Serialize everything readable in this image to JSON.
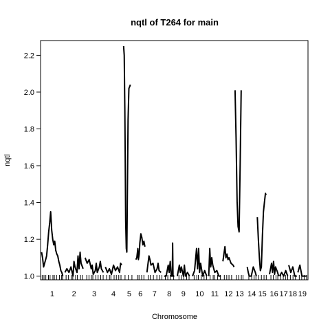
{
  "chart_data": {
    "type": "line",
    "title": "nqtl of T264 for main",
    "xlabel": "Chromosome",
    "ylabel": "nqtl",
    "ylim": [
      0.98,
      2.28
    ],
    "yticks": [
      1.0,
      1.2,
      1.4,
      1.6,
      1.8,
      2.0,
      2.2
    ],
    "ytick_labels": [
      "1.0",
      "1.2",
      "1.4",
      "1.6",
      "1.8",
      "2.0",
      "2.2"
    ],
    "grid": false,
    "legend": "none",
    "line_color": "#000000",
    "chromosomes": [
      {
        "label": "1",
        "start": 0,
        "len": 10.5,
        "pts": [
          [
            0,
            1.13
          ],
          [
            0.5,
            1.1
          ],
          [
            1,
            1.05
          ],
          [
            1.5,
            1.07
          ],
          [
            2,
            1.09
          ],
          [
            2.5,
            1.11
          ],
          [
            3,
            1.17
          ],
          [
            3.5,
            1.24
          ],
          [
            4,
            1.29
          ],
          [
            4.5,
            1.35
          ],
          [
            5,
            1.25
          ],
          [
            5.5,
            1.2
          ],
          [
            6,
            1.17
          ],
          [
            6.5,
            1.19
          ],
          [
            7,
            1.14
          ],
          [
            7.5,
            1.12
          ],
          [
            8,
            1.11
          ],
          [
            8.5,
            1.08
          ],
          [
            9,
            1.06
          ],
          [
            9.5,
            1.03
          ],
          [
            10,
            1.02
          ],
          [
            10.5,
            1.0
          ]
        ]
      },
      {
        "label": "2",
        "start": 11.5,
        "len": 9,
        "pts": [
          [
            0,
            1.02
          ],
          [
            1,
            1.04
          ],
          [
            2,
            1.02
          ],
          [
            3,
            1.05
          ],
          [
            4,
            1.0
          ],
          [
            4.5,
            1.08
          ],
          [
            5,
            1.05
          ],
          [
            6,
            1.02
          ],
          [
            6.5,
            1.11
          ],
          [
            7,
            1.04
          ],
          [
            7.5,
            1.13
          ],
          [
            8,
            1.07
          ],
          [
            9,
            1.04
          ]
        ]
      },
      {
        "label": "3",
        "start": 21.5,
        "len": 9,
        "pts": [
          [
            0,
            1.1
          ],
          [
            1,
            1.07
          ],
          [
            2,
            1.09
          ],
          [
            3,
            1.04
          ],
          [
            3.5,
            1.06
          ],
          [
            4,
            1.01
          ],
          [
            5,
            1.03
          ],
          [
            5.5,
            1.07
          ],
          [
            6,
            1.02
          ],
          [
            7,
            1.05
          ],
          [
            7.5,
            1.08
          ],
          [
            8,
            1.04
          ],
          [
            9,
            1.02
          ]
        ]
      },
      {
        "label": "4",
        "start": 31.5,
        "len": 8,
        "pts": [
          [
            0,
            1.05
          ],
          [
            1,
            1.02
          ],
          [
            2,
            1.04
          ],
          [
            3,
            1.01
          ],
          [
            4,
            1.06
          ],
          [
            5,
            1.03
          ],
          [
            6,
            1.05
          ],
          [
            7,
            1.02
          ],
          [
            7.5,
            1.07
          ],
          [
            8,
            1.06
          ]
        ]
      },
      {
        "label": "5",
        "start": 40.5,
        "len": 5.5,
        "pts": [
          [
            0,
            2.25
          ],
          [
            0.3,
            2.2
          ],
          [
            0.6,
            1.9
          ],
          [
            1,
            1.3
          ],
          [
            1.3,
            1.15
          ],
          [
            1.6,
            1.13
          ],
          [
            1.9,
            1.5
          ],
          [
            2.2,
            1.85
          ],
          [
            2.6,
            2.02
          ],
          [
            3,
            2.03
          ],
          [
            3.3,
            2.04
          ]
        ]
      },
      {
        "label": "6",
        "start": 46.5,
        "len": 4.5,
        "pts": [
          [
            0,
            1.09
          ],
          [
            0.5,
            1.1
          ],
          [
            1,
            1.15
          ],
          [
            1.3,
            1.09
          ],
          [
            1.7,
            1.12
          ],
          [
            2,
            1.18
          ],
          [
            2.5,
            1.23
          ],
          [
            3,
            1.21
          ],
          [
            3.5,
            1.17
          ],
          [
            4,
            1.19
          ],
          [
            4.5,
            1.16
          ]
        ]
      },
      {
        "label": "7",
        "start": 52,
        "len": 7.5,
        "pts": [
          [
            0,
            1.02
          ],
          [
            1,
            1.11
          ],
          [
            1.5,
            1.09
          ],
          [
            2,
            1.06
          ],
          [
            3,
            1.07
          ],
          [
            4,
            1.02
          ],
          [
            5,
            1.04
          ],
          [
            5.5,
            1.07
          ],
          [
            6,
            1.03
          ],
          [
            7,
            1.02
          ]
        ]
      },
      {
        "label": "8",
        "start": 60.5,
        "len": 5,
        "pts": [
          [
            0,
            1.0
          ],
          [
            1,
            1.0
          ],
          [
            2,
            1.06
          ],
          [
            2.5,
            1.02
          ],
          [
            3,
            1.08
          ],
          [
            3.5,
            1.0
          ],
          [
            4,
            1.0
          ],
          [
            4.2,
            1.18
          ],
          [
            4.4,
            1.0
          ],
          [
            5,
            1.0
          ]
        ]
      },
      {
        "label": "9",
        "start": 67,
        "len": 6,
        "pts": [
          [
            0,
            1.0
          ],
          [
            1,
            1.06
          ],
          [
            1.5,
            1.02
          ],
          [
            2,
            1.05
          ],
          [
            3,
            1.0
          ],
          [
            3.5,
            1.06
          ],
          [
            4,
            1.0
          ],
          [
            5,
            1.02
          ],
          [
            6,
            1.0
          ]
        ]
      },
      {
        "label": "10",
        "start": 74.5,
        "len": 7,
        "pts": [
          [
            0,
            1.0
          ],
          [
            1,
            1.03
          ],
          [
            2,
            1.15
          ],
          [
            2.5,
            1.04
          ],
          [
            3,
            1.15
          ],
          [
            3.5,
            1.02
          ],
          [
            4,
            1.07
          ],
          [
            5,
            1.0
          ],
          [
            6,
            1.03
          ],
          [
            7,
            1.0
          ]
        ]
      },
      {
        "label": "11",
        "start": 82.5,
        "len": 6,
        "pts": [
          [
            0,
            1.0
          ],
          [
            0.5,
            1.15
          ],
          [
            1,
            1.05
          ],
          [
            1.5,
            1.1
          ],
          [
            2,
            1.06
          ],
          [
            3,
            1.02
          ],
          [
            4,
            1.03
          ],
          [
            5,
            1.0
          ],
          [
            6,
            1.0
          ]
        ]
      },
      {
        "label": "12",
        "start": 89.5,
        "len": 5.5,
        "pts": [
          [
            0,
            1.08
          ],
          [
            1,
            1.16
          ],
          [
            1.5,
            1.1
          ],
          [
            2,
            1.12
          ],
          [
            2.5,
            1.09
          ],
          [
            3,
            1.1
          ],
          [
            4,
            1.07
          ],
          [
            5,
            1.06
          ],
          [
            5.5,
            1.05
          ]
        ]
      },
      {
        "label": "13",
        "start": 95.5,
        "len": 4.5,
        "pts": [
          [
            0,
            2.01
          ],
          [
            0.5,
            1.75
          ],
          [
            1,
            1.4
          ],
          [
            1.5,
            1.27
          ],
          [
            2,
            1.24
          ],
          [
            2.5,
            1.6
          ],
          [
            3,
            2.01
          ]
        ]
      },
      {
        "label": "14",
        "start": 101.5,
        "len": 4.5,
        "pts": [
          [
            0,
            1.05
          ],
          [
            0.5,
            1.02
          ],
          [
            1,
            1.0
          ],
          [
            1.5,
            1.0
          ],
          [
            2,
            1.0
          ],
          [
            3,
            1.05
          ],
          [
            4,
            1.02
          ],
          [
            4.5,
            1.0
          ]
        ]
      },
      {
        "label": "15",
        "start": 106.5,
        "len": 5,
        "pts": [
          [
            0,
            1.32
          ],
          [
            0.5,
            1.2
          ],
          [
            1,
            1.1
          ],
          [
            1.5,
            1.03
          ],
          [
            2,
            1.05
          ],
          [
            2.5,
            1.22
          ],
          [
            3,
            1.35
          ],
          [
            3.5,
            1.4
          ],
          [
            4,
            1.45
          ],
          [
            4.3,
            1.44
          ]
        ]
      },
      {
        "label": "16",
        "start": 112.5,
        "len": 4.5,
        "pts": [
          [
            0,
            1.01
          ],
          [
            1,
            1.07
          ],
          [
            1.5,
            1.02
          ],
          [
            2,
            1.08
          ],
          [
            2.5,
            1.01
          ],
          [
            3,
            1.05
          ],
          [
            4,
            1.02
          ],
          [
            4.5,
            1.0
          ]
        ]
      },
      {
        "label": "17",
        "start": 117.5,
        "len": 4,
        "pts": [
          [
            0,
            1.0
          ],
          [
            1,
            1.02
          ],
          [
            2,
            1.0
          ],
          [
            3,
            1.03
          ],
          [
            4,
            1.0
          ]
        ]
      },
      {
        "label": "18",
        "start": 122,
        "len": 4,
        "pts": [
          [
            0,
            1.06
          ],
          [
            1,
            1.02
          ],
          [
            2,
            1.05
          ],
          [
            3,
            1.0
          ],
          [
            4,
            1.0
          ]
        ]
      },
      {
        "label": "19",
        "start": 126.5,
        "len": 4.5,
        "pts": [
          [
            0,
            1.02
          ],
          [
            1,
            1.06
          ],
          [
            2,
            1.0
          ],
          [
            3,
            1.0
          ],
          [
            4.5,
            1.0
          ]
        ]
      }
    ],
    "x_min": -0.5,
    "x_max": 131.5,
    "marker_positions": [
      0.3,
      1.2,
      2.1,
      3.4,
      4.2,
      5.6,
      6.3,
      7.4,
      8.8,
      9.9,
      10.4,
      12.1,
      13.3,
      14.6,
      15.4,
      16.8,
      17.7,
      19.2,
      20.1,
      22.3,
      23.4,
      24.6,
      25.3,
      26.8,
      27.9,
      29.2,
      30.4,
      32.1,
      33.5,
      34.2,
      35.8,
      36.9,
      38.1,
      39.2,
      41.2,
      42.8,
      44.6,
      47.3,
      48.1,
      49.4,
      50.5,
      52.6,
      53.7,
      55.2,
      56.9,
      58.3,
      59.4,
      61.1,
      62.3,
      63.5,
      65.2,
      67.8,
      68.9,
      70.2,
      71.6,
      72.8,
      75.3,
      76.6,
      77.4,
      78.8,
      80.2,
      81.4,
      83.2,
      84.7,
      85.5,
      86.9,
      88.2,
      90.2,
      91.4,
      92.5,
      93.8,
      96.1,
      97.3,
      98.6,
      99.4,
      102.3,
      103.7,
      104.9,
      105.8,
      107.2,
      108.5,
      109.8,
      110.9,
      113.2,
      114.4,
      115.7,
      116.6,
      118.1,
      119.3,
      120.4,
      121.5,
      122.8,
      124.1,
      125.3,
      127.2,
      128.4,
      129.6,
      130.8
    ]
  }
}
